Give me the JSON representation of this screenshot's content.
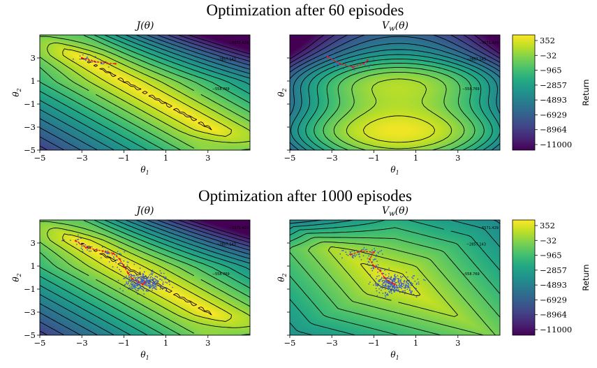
{
  "colors": {
    "colormap": [
      "#440154",
      "#482475",
      "#414487",
      "#355f8d",
      "#2a788e",
      "#21918c",
      "#22a884",
      "#44bf70",
      "#7ad151",
      "#bddf26",
      "#fde725"
    ],
    "contour": "#000000",
    "samples": "#3a5fcd",
    "path": "#e8141e"
  },
  "figures": [
    {
      "suptitle": "Optimization after 60 episodes",
      "colorbar": {
        "label": "Return",
        "ticks": [
          "352",
          "−32",
          "−965",
          "−2857",
          "−4893",
          "−6929",
          "−8964",
          "−11000"
        ]
      }
    },
    {
      "suptitle": "Optimization after 1000 episodes",
      "colorbar": {
        "label": "Return",
        "ticks": [
          "352",
          "−32",
          "−965",
          "−2857",
          "−4893",
          "−6929",
          "−8964",
          "−11000"
        ]
      }
    }
  ],
  "contour_labels": [
    "−558.769",
    "−2857.143",
    "−5571.429"
  ],
  "chart_data": [
    {
      "type": "heatmap",
      "title": "J(θ)",
      "xlabel": "θ1",
      "ylabel": "θ2",
      "xlim": [
        -5,
        5
      ],
      "ylim": [
        -5,
        5
      ],
      "xticks": [
        "−5",
        "−3",
        "−1",
        "1",
        "3"
      ],
      "yticks": [
        "3",
        "1",
        "−1",
        "−3",
        "−5"
      ],
      "zlim": [
        -11000,
        352
      ],
      "surface": "J",
      "samples": 25,
      "path": [
        [
          -3.0,
          3.0
        ],
        [
          -2.4,
          2.7
        ],
        [
          -1.8,
          2.55
        ],
        [
          -1.4,
          2.5
        ]
      ]
    },
    {
      "type": "heatmap",
      "title": "Vw(θ)",
      "xlabel": "θ1",
      "ylabel": "θ2",
      "xlim": [
        -5,
        5
      ],
      "ylim": [
        -5,
        5
      ],
      "xticks": [
        "−5",
        "−3",
        "−1",
        "1",
        "3"
      ],
      "yticks": [],
      "zlim": [
        -11000,
        352
      ],
      "surface": "V60",
      "samples": 40,
      "path": [
        [
          -3.2,
          3.1
        ],
        [
          -2.6,
          2.5
        ],
        [
          -2.0,
          2.2
        ],
        [
          -1.5,
          2.5
        ],
        [
          -1.3,
          2.8
        ]
      ]
    },
    {
      "type": "heatmap",
      "title": "J(θ)",
      "xlabel": "θ1",
      "ylabel": "θ2",
      "xlim": [
        -5,
        5
      ],
      "ylim": [
        -5,
        5
      ],
      "xticks": [
        "−5",
        "−3",
        "−1",
        "1",
        "3"
      ],
      "yticks": [
        "3",
        "1",
        "−1",
        "−3",
        "−5"
      ],
      "zlim": [
        -11000,
        352
      ],
      "surface": "J",
      "samples": 420,
      "path": [
        [
          -3.3,
          3.2
        ],
        [
          -2.8,
          2.6
        ],
        [
          -2.0,
          2.3
        ],
        [
          -1.5,
          2.1
        ],
        [
          -1.2,
          1.6
        ],
        [
          -1.0,
          1.0
        ],
        [
          -0.8,
          0.4
        ],
        [
          -0.6,
          -0.1
        ],
        [
          -0.3,
          -0.4
        ],
        [
          -0.1,
          -0.6
        ],
        [
          0.0,
          -0.4
        ]
      ]
    },
    {
      "type": "heatmap",
      "title": "Vw(θ)",
      "xlabel": "θ1",
      "ylabel": "θ2",
      "xlim": [
        -5,
        5
      ],
      "ylim": [
        -5,
        5
      ],
      "xticks": [
        "−5",
        "−3",
        "−1",
        "1",
        "3"
      ],
      "yticks": [],
      "zlim": [
        -11000,
        352
      ],
      "surface": "V1000",
      "samples": 420,
      "path": [
        [
          -2.1,
          2.0
        ],
        [
          -1.6,
          2.3
        ],
        [
          -1.0,
          2.2
        ],
        [
          -1.2,
          1.6
        ],
        [
          -1.0,
          1.0
        ],
        [
          -0.7,
          0.6
        ],
        [
          -0.5,
          0.0
        ],
        [
          -0.3,
          -0.3
        ],
        [
          -0.1,
          -0.5
        ],
        [
          0.0,
          -0.6
        ]
      ]
    }
  ]
}
